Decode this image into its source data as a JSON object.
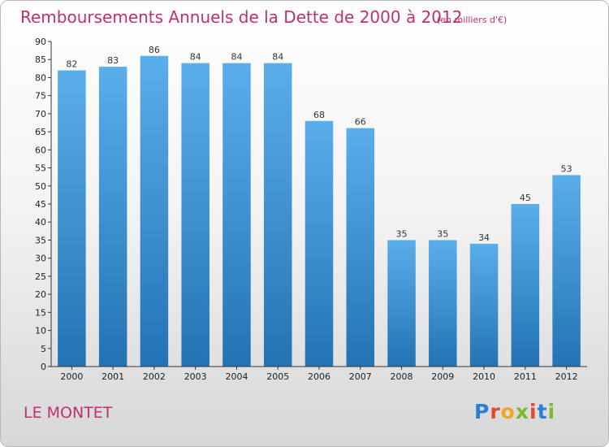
{
  "header": {
    "title": "Remboursements Annuels de la Dette de 2000 à 2012",
    "subtitle": "(en milliers d'€)"
  },
  "footer": {
    "place": "LE MONTET",
    "logo": "Proxiti"
  },
  "colors": {
    "title": "#c0306e",
    "bar_top": "#5aaeea",
    "bar_bottom": "#2373b4"
  },
  "chart_data": {
    "type": "bar",
    "title": "Remboursements Annuels de la Dette de 2000 à 2012",
    "subtitle": "(en milliers d'€)",
    "categories": [
      "2000",
      "2001",
      "2002",
      "2003",
      "2004",
      "2005",
      "2006",
      "2007",
      "2008",
      "2009",
      "2010",
      "2011",
      "2012"
    ],
    "values": [
      82,
      83,
      86,
      84,
      84,
      84,
      68,
      66,
      35,
      35,
      34,
      45,
      53
    ],
    "xlabel": "",
    "ylabel": "",
    "ylim": [
      0,
      90
    ],
    "yticks": [
      0,
      5,
      10,
      15,
      20,
      25,
      30,
      35,
      40,
      45,
      50,
      55,
      60,
      65,
      70,
      75,
      80,
      85,
      90
    ],
    "grid": false,
    "legend": "none",
    "data_labels": true
  }
}
